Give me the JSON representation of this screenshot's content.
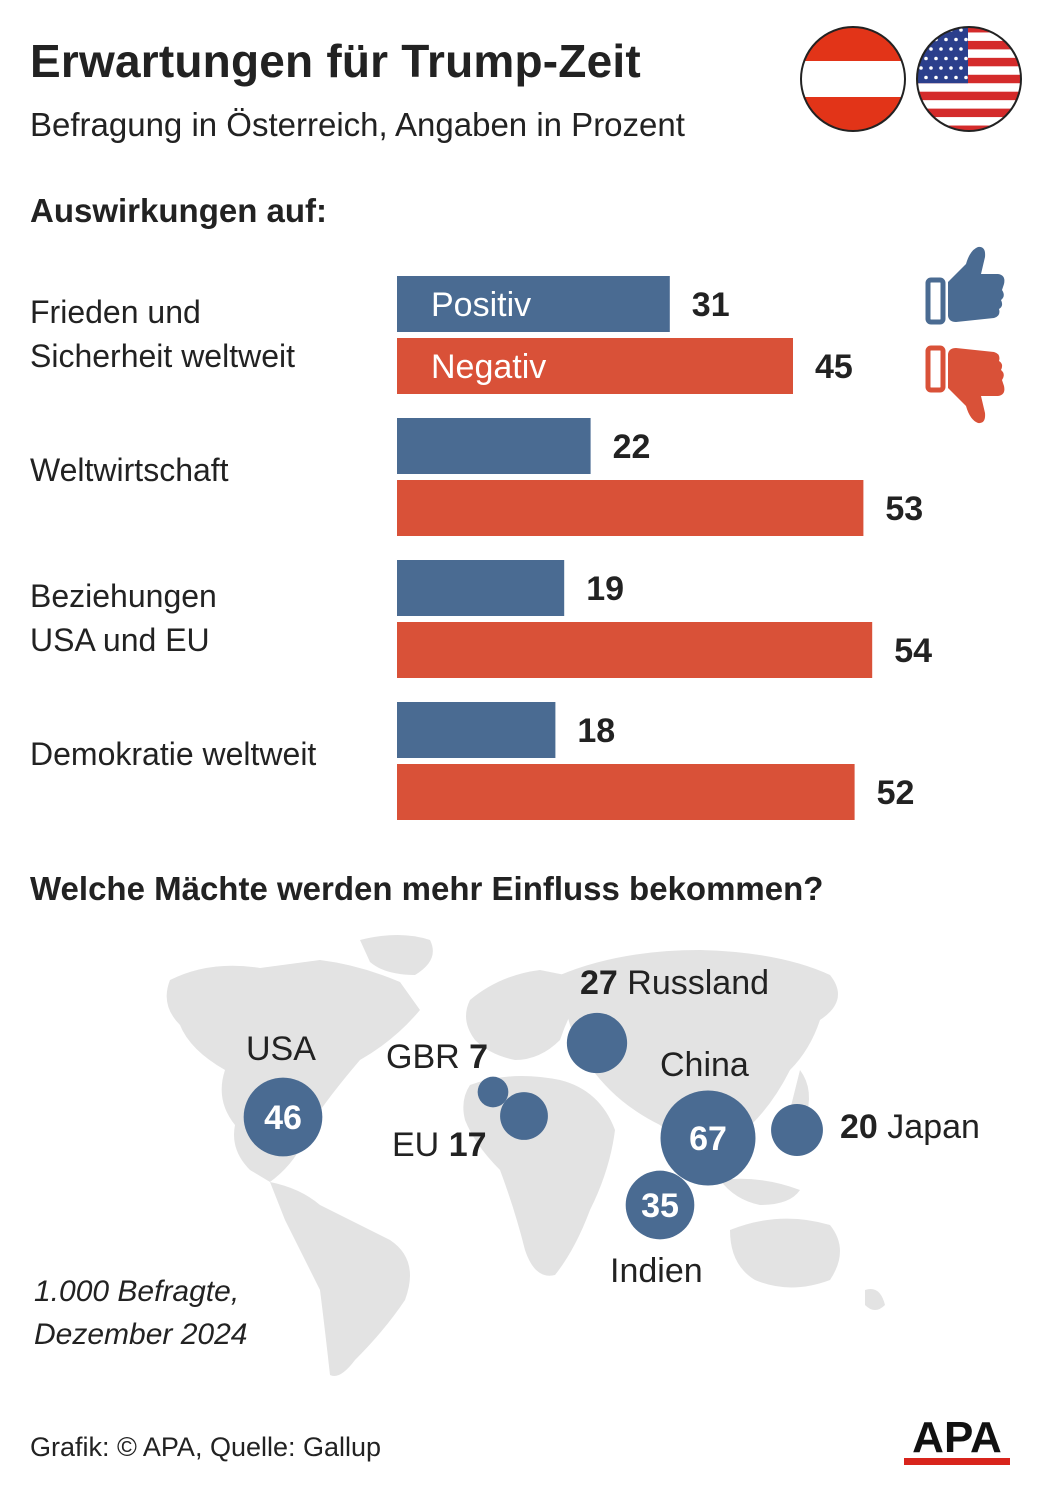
{
  "header": {
    "title": "Erwartungen für Trump-Zeit",
    "subtitle": "Befragung in Österreich, Angaben in Prozent"
  },
  "section1": {
    "heading": "Auswirkungen auf:"
  },
  "section2": {
    "heading": "Welche Mächte werden mehr Einfluss bekommen?"
  },
  "colors": {
    "positive": "#4a6b92",
    "negative": "#d95138",
    "map": "#e3e3e3",
    "bubble": "#4a6b92"
  },
  "icons": {
    "flag1": "austria-flag-icon",
    "flag2": "usa-flag-icon",
    "up": "thumbs-up-icon",
    "down": "thumbs-down-icon"
  },
  "chart_data": [
    {
      "type": "bar",
      "orientation": "horizontal",
      "categories": [
        "Frieden und Sicherheit weltweit",
        "Weltwirtschaft",
        "Beziehungen USA und EU",
        "Demokratie weltweit"
      ],
      "category_lines": [
        [
          "Frieden und",
          "Sicherheit weltweit"
        ],
        [
          "Weltwirtschaft"
        ],
        [
          "Beziehungen",
          "USA und EU"
        ],
        [
          "Demokratie weltweit"
        ]
      ],
      "series": [
        {
          "name": "Positiv",
          "values": [
            31,
            22,
            19,
            18
          ]
        },
        {
          "name": "Negativ",
          "values": [
            45,
            53,
            54,
            52
          ]
        }
      ]
    },
    {
      "type": "bubble-map",
      "points": [
        {
          "name": "USA",
          "value": 46
        },
        {
          "name": "GBR",
          "value": 7
        },
        {
          "name": "EU",
          "value": 17
        },
        {
          "name": "Russland",
          "value": 27
        },
        {
          "name": "China",
          "value": 67
        },
        {
          "name": "Japan",
          "value": 20
        },
        {
          "name": "Indien",
          "value": 35
        }
      ]
    }
  ],
  "footer": {
    "note_line1": "1.000 Befragte,",
    "note_line2": "Dezember 2024",
    "source": "Grafik: © APA, Quelle: Gallup",
    "logo": "APA"
  }
}
